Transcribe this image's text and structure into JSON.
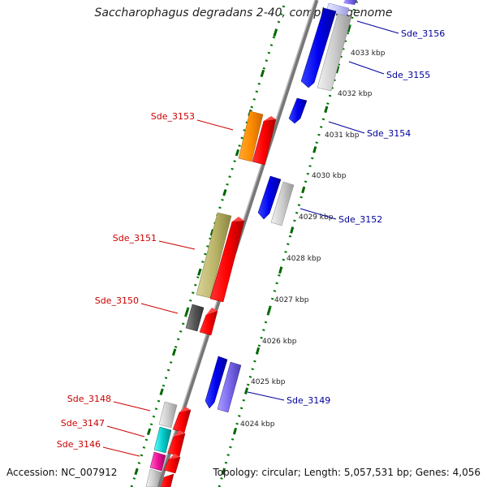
{
  "title": "Saccharophagus degradans 2-40, complete genome",
  "accession": "Accession: NC_007912",
  "summary": "Topology: circular; Length: 5,057,531 bp; Genes: 4,056",
  "colors": {
    "red_label": "#cc0000",
    "blue_label": "#000099",
    "backbone": "#888888",
    "tick": "#006600"
  },
  "kbp_labels": [
    {
      "label": "4024 kbp",
      "kbp": 4024
    },
    {
      "label": "4025 kbp",
      "kbp": 4025
    },
    {
      "label": "4026 kbp",
      "kbp": 4026
    },
    {
      "label": "4027 kbp",
      "kbp": 4027
    },
    {
      "label": "4028 kbp",
      "kbp": 4028
    },
    {
      "label": "4029 kbp",
      "kbp": 4029
    },
    {
      "label": "4030 kbp",
      "kbp": 4030
    },
    {
      "label": "4031 kbp",
      "kbp": 4031
    },
    {
      "label": "4032 kbp",
      "kbp": 4032
    },
    {
      "label": "4033 kbp",
      "kbp": 4033
    }
  ],
  "labels_left": [
    {
      "text": "Sde_3153"
    },
    {
      "text": "Sde_3151"
    },
    {
      "text": "Sde_3150"
    },
    {
      "text": "Sde_3148"
    },
    {
      "text": "Sde_3147"
    },
    {
      "text": "Sde_3146"
    }
  ],
  "labels_right": [
    {
      "text": "Sde_3156"
    },
    {
      "text": "Sde_3155"
    },
    {
      "text": "Sde_3154"
    },
    {
      "text": "Sde_3152"
    },
    {
      "text": "Sde_3149"
    }
  ]
}
